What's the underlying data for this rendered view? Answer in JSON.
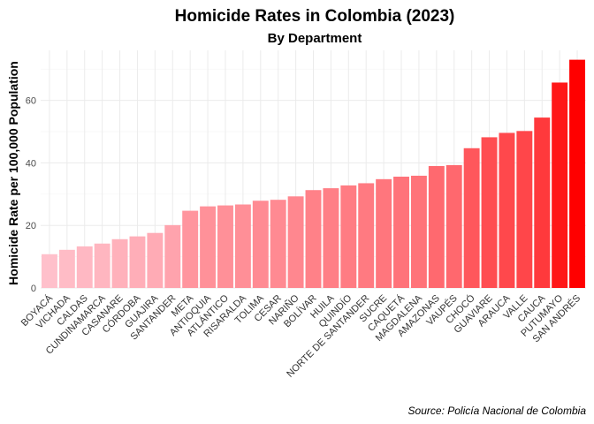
{
  "chart_data": {
    "type": "bar",
    "title": "Homicide Rates in Colombia (2023)",
    "subtitle": "By Department",
    "ylabel": "Homicide Rate per 100,000 Population",
    "xlabel": "",
    "caption": "Source: Policía Nacional de Colombia",
    "ylim": [
      0,
      76
    ],
    "yticks": [
      0,
      20,
      40,
      60
    ],
    "grid": true,
    "color_low": "#ffc0cb",
    "color_high": "#ff0000",
    "categories": [
      "BOYACÁ",
      "VICHADA",
      "CALDAS",
      "CUNDINAMARCA",
      "CASANARE",
      "CÓRDOBA",
      "GUAJIRA",
      "SANTANDER",
      "META",
      "ANTIOQUIA",
      "ATLÁNTICO",
      "RISARALDA",
      "TOLIMA",
      "CESAR",
      "NARIÑO",
      "BOLÍVAR",
      "HUILA",
      "QUINDÍO",
      "NORTE DE SANTANDER",
      "SUCRE",
      "CAQUETÁ",
      "MAGDALENA",
      "AMAZONAS",
      "VAUPÉS",
      "CHOCÓ",
      "GUAVIARE",
      "ARAUCA",
      "VALLE",
      "CAUCA",
      "PUTUMAYO",
      "SAN ANDRÉS"
    ],
    "values": [
      10.8,
      12.2,
      13.3,
      14.2,
      15.6,
      16.5,
      17.6,
      20.1,
      24.7,
      26.1,
      26.4,
      26.7,
      27.9,
      28.2,
      29.3,
      31.3,
      31.9,
      32.8,
      33.5,
      34.8,
      35.6,
      35.9,
      39.0,
      39.3,
      44.7,
      48.2,
      49.6,
      50.2,
      54.5,
      65.7,
      73.0
    ]
  }
}
